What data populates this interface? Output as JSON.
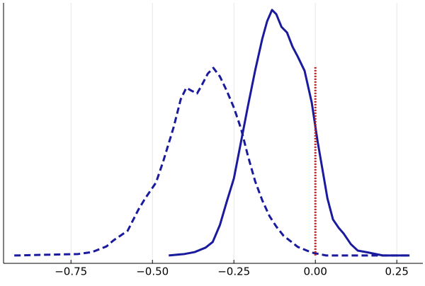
{
  "chart_data": {
    "type": "line",
    "xlim": [
      -0.957,
      0.33
    ],
    "ylim": [
      -0.032,
      1.029
    ],
    "xticks": [
      {
        "value": -0.75,
        "label": "−0.75"
      },
      {
        "value": -0.5,
        "label": "−0.50"
      },
      {
        "value": -0.25,
        "label": "−0.25"
      },
      {
        "value": 0,
        "label": "0.00"
      },
      0.25
    ],
    "grid": true,
    "series": [
      {
        "color": "#1a1a9c",
        "line_style": "dashed",
        "x": [
          -0.924,
          -0.728,
          -0.685,
          -0.641,
          -0.62,
          -0.576,
          -0.543,
          -0.522,
          -0.489,
          -0.467,
          -0.435,
          -0.413,
          -0.396,
          -0.38,
          -0.363,
          -0.348,
          -0.33,
          -0.313,
          -0.293,
          -0.272,
          -0.25,
          -0.228,
          -0.207,
          -0.185,
          -0.163,
          -0.141,
          -0.12,
          -0.098,
          -0.054,
          -0.011,
          0.033,
          0.098,
          0.185,
          0.289
        ],
        "values": [
          0,
          0.006,
          0.014,
          0.037,
          0.061,
          0.101,
          0.187,
          0.233,
          0.297,
          0.383,
          0.522,
          0.637,
          0.683,
          0.671,
          0.66,
          0.695,
          0.741,
          0.764,
          0.729,
          0.671,
          0.602,
          0.516,
          0.406,
          0.303,
          0.225,
          0.161,
          0.118,
          0.081,
          0.035,
          0.012,
          0,
          0,
          0,
          0
        ]
      },
      {
        "color": "#1a1a9c",
        "line_style": "solid",
        "x": [
          -0.45,
          -0.402,
          -0.37,
          -0.337,
          -0.315,
          -0.293,
          -0.272,
          -0.25,
          -0.228,
          -0.207,
          -0.185,
          -0.163,
          -0.148,
          -0.133,
          -0.12,
          -0.104,
          -0.087,
          -0.07,
          -0.054,
          -0.033,
          -0.011,
          0.007,
          0.022,
          0.037,
          0.054,
          0.072,
          0.087,
          0.109,
          0.13,
          0.163,
          0.207,
          0.25,
          0.289
        ],
        "values": [
          0,
          0.006,
          0.014,
          0.032,
          0.055,
          0.124,
          0.219,
          0.314,
          0.464,
          0.608,
          0.752,
          0.882,
          0.954,
          1.0,
          0.983,
          0.931,
          0.908,
          0.85,
          0.81,
          0.752,
          0.622,
          0.464,
          0.349,
          0.233,
          0.147,
          0.112,
          0.089,
          0.046,
          0.02,
          0.012,
          0,
          0,
          0
        ]
      },
      {
        "color": "#b22222",
        "line_style": "dotted",
        "x": [
          0,
          0
        ],
        "values": [
          0,
          0.767
        ]
      }
    ]
  }
}
